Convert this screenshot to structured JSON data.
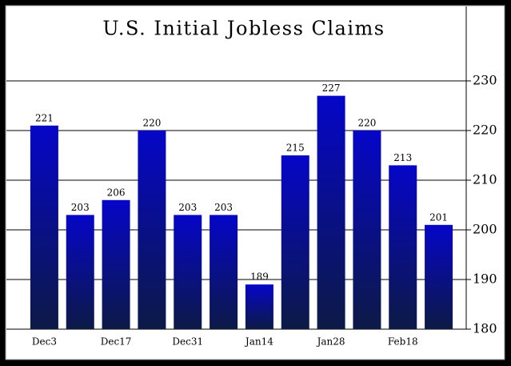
{
  "chart_data": {
    "type": "bar",
    "title": "U.S. Initial Jobless Claims",
    "categories": [
      "Dec3",
      null,
      "Dec17",
      null,
      "Dec31",
      null,
      "Jan14",
      null,
      "Jan28",
      null,
      "Feb18",
      null
    ],
    "values": [
      221,
      203,
      206,
      220,
      203,
      203,
      189,
      215,
      227,
      220,
      213,
      201
    ],
    "gradient": [
      "#0606c8",
      "#0c1a46"
    ],
    "ylim": [
      180,
      245
    ],
    "yticks": [
      180,
      190,
      200,
      210,
      220,
      230
    ],
    "grid": true,
    "y_axis_side": "right"
  }
}
